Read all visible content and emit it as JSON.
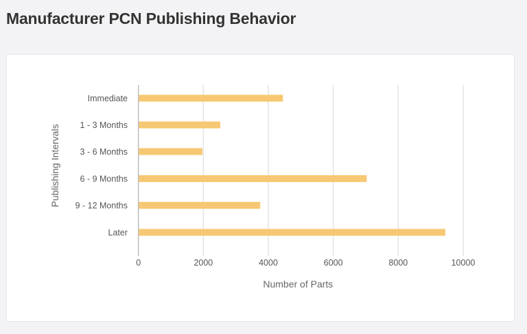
{
  "header": {
    "title": "Manufacturer PCN Publishing Behavior"
  },
  "colors": {
    "bar": "#f7c873",
    "gridline": "#e4e4e4",
    "axis": "#bdbdbd",
    "page_bg": "#f3f3f5",
    "card_bg": "#ffffff"
  },
  "chart_data": {
    "type": "bar",
    "orientation": "horizontal",
    "title": "Manufacturer PCN Publishing Behavior",
    "categories": [
      "Immediate",
      "1 - 3 Months",
      "3 - 6 Months",
      "6 - 9 Months",
      "9 - 12 Months",
      "Later"
    ],
    "values": [
      4450,
      2520,
      1970,
      7030,
      3750,
      9450
    ],
    "xlabel": "Number of Parts",
    "ylabel": "Publishing Intervals",
    "xlim": [
      0,
      10000
    ],
    "xticks": [
      0,
      2000,
      4000,
      6000,
      8000,
      10000
    ],
    "xtick_labels": [
      "0",
      "2000",
      "4000",
      "6000",
      "8000",
      "10000"
    ],
    "grid": "vertical",
    "legend": "none"
  }
}
